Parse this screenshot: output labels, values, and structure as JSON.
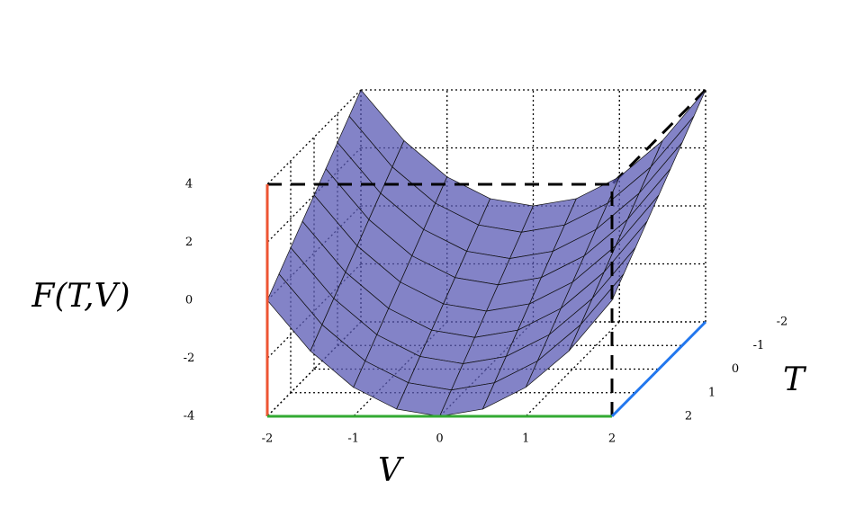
{
  "chart_data": {
    "type": "surface",
    "x_label": "V",
    "y_label": "T",
    "z_label": "F(T,V)",
    "x": [
      -2,
      -1.5,
      -1,
      -0.5,
      0,
      0.5,
      1,
      1.5,
      2
    ],
    "y": [
      -2,
      -1.5,
      -1,
      -0.5,
      0,
      0.5,
      1,
      1.5,
      2
    ],
    "z": [
      [
        4,
        2.25,
        1,
        0.25,
        0,
        0.25,
        1,
        2.25,
        4
      ],
      [
        3.5,
        1.75,
        0.5,
        -0.25,
        -0.5,
        -0.25,
        0.5,
        1.75,
        3.5
      ],
      [
        3,
        1.25,
        0,
        -0.75,
        -1,
        -0.75,
        0,
        1.25,
        3
      ],
      [
        2.5,
        0.75,
        -0.5,
        -1.25,
        -1.5,
        -1.25,
        -0.5,
        0.75,
        2.5
      ],
      [
        2,
        0.25,
        -1,
        -1.75,
        -2,
        -1.75,
        -1,
        0.25,
        2
      ],
      [
        1.5,
        -0.25,
        -1.5,
        -2.25,
        -2.5,
        -2.25,
        -1.5,
        -0.25,
        1.5
      ],
      [
        1,
        -0.75,
        -2,
        -2.75,
        -3,
        -2.75,
        -2,
        -0.75,
        1
      ],
      [
        0.5,
        -1.25,
        -2.5,
        -3.25,
        -3.5,
        -3.25,
        -2.5,
        -1.25,
        0.5
      ],
      [
        0,
        -1.75,
        -3,
        -3.75,
        -4,
        -3.75,
        -3,
        -1.75,
        0
      ]
    ],
    "xlim": [
      -2,
      2
    ],
    "ylim": [
      -2,
      2
    ],
    "zlim": [
      -4,
      4
    ],
    "xticks": [
      -2,
      -1,
      0,
      1,
      2
    ],
    "yticks": [
      -2,
      -1,
      0,
      1,
      2
    ],
    "zticks": [
      -4,
      -2,
      0,
      2,
      4
    ],
    "color": "#5a5ab4",
    "grid": true
  }
}
